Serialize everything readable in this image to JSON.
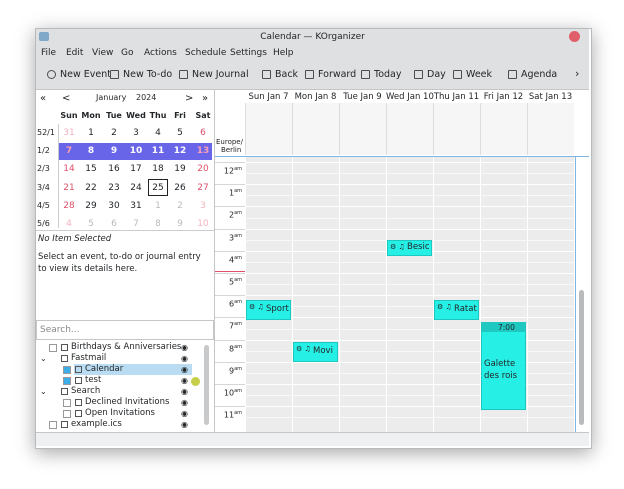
{
  "window": {
    "title": "Calendar — KOrganizer"
  },
  "menu": [
    "File",
    "Edit",
    "View",
    "Go",
    "Actions",
    "Schedule",
    "Settings",
    "Help"
  ],
  "toolbar": [
    "New Event",
    "New To-do",
    "New Journal",
    "Back",
    "Forward",
    "Today",
    "Day",
    "Week",
    "Agenda"
  ],
  "mini_calendar": {
    "nav": [
      "«",
      "<",
      "January",
      "2024",
      ">",
      "»"
    ],
    "weekdays": [
      "Sun",
      "Mon",
      "Tue",
      "Wed",
      "Thu",
      "Fri",
      "Sat"
    ],
    "weeks": [
      {
        "label": "52/1",
        "days": [
          "31",
          "1",
          "2",
          "3",
          "4",
          "5",
          "6"
        ]
      },
      {
        "label": "1/2",
        "days": [
          "7",
          "8",
          "9",
          "10",
          "11",
          "12",
          "13"
        ]
      },
      {
        "label": "2/3",
        "days": [
          "14",
          "15",
          "16",
          "17",
          "18",
          "19",
          "20"
        ]
      },
      {
        "label": "3/4",
        "days": [
          "21",
          "22",
          "23",
          "24",
          "25",
          "26",
          "27"
        ]
      },
      {
        "label": "4/5",
        "days": [
          "28",
          "29",
          "30",
          "31",
          "1",
          "2",
          "3"
        ]
      },
      {
        "label": "5/6",
        "days": [
          "4",
          "5",
          "6",
          "7",
          "8",
          "9",
          "10"
        ]
      }
    ]
  },
  "details": {
    "title": "No Item Selected",
    "text": "Select an event, to-do or journal entry to view its details here."
  },
  "search": {
    "placeholder": "Search..."
  },
  "calendars": [
    {
      "label": "Birthdays & Anniversaries"
    },
    {
      "label": "Fastmail",
      "children": [
        {
          "label": "Calendar"
        },
        {
          "label": "test"
        }
      ]
    },
    {
      "label": "Search",
      "children": [
        {
          "label": "Declined Invitations"
        },
        {
          "label": "Open Invitations"
        }
      ]
    },
    {
      "label": "example.ics"
    }
  ],
  "agenda": {
    "timezone": [
      "Europe/",
      "Berlin"
    ],
    "hours": [
      {
        "hour": "12",
        "suffix": "am"
      },
      {
        "hour": "1",
        "suffix": "am"
      },
      {
        "hour": "2",
        "suffix": "am"
      },
      {
        "hour": "3",
        "suffix": "am"
      },
      {
        "hour": "4",
        "suffix": "am"
      },
      {
        "hour": "5",
        "suffix": "am"
      },
      {
        "hour": "6",
        "suffix": "am"
      },
      {
        "hour": "7",
        "suffix": "am"
      },
      {
        "hour": "8",
        "suffix": "am"
      },
      {
        "hour": "9",
        "suffix": "am"
      },
      {
        "hour": "10",
        "suffix": "am"
      },
      {
        "hour": "11",
        "suffix": "am"
      }
    ],
    "days": [
      {
        "label": "Sun Jan 7",
        "events": [
          {
            "title": "Sport"
          }
        ]
      },
      {
        "label": "Mon Jan 8",
        "events": [
          {
            "title": "Movi"
          }
        ]
      },
      {
        "label": "Tue Jan 9",
        "events": []
      },
      {
        "label": "Wed Jan 10",
        "events": [
          {
            "title": "Besic"
          }
        ]
      },
      {
        "label": "Thu Jan 11",
        "events": [
          {
            "title": "Ratat"
          }
        ]
      },
      {
        "label": "Fri Jan 12",
        "events": [
          {
            "time": "7:00",
            "title": "Galette des rois"
          }
        ]
      },
      {
        "label": "Sat Jan 13",
        "events": []
      }
    ]
  }
}
